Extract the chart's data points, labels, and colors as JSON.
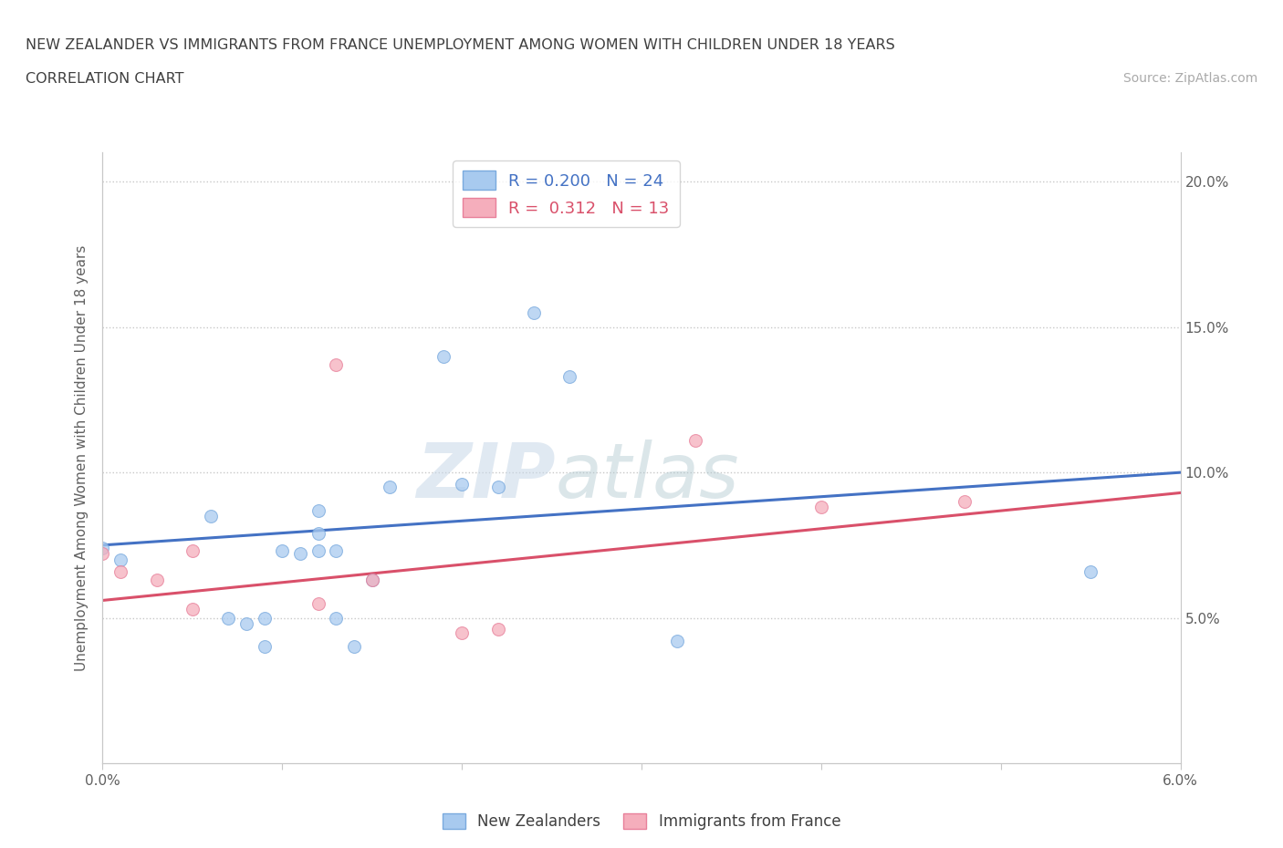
{
  "title_line1": "NEW ZEALANDER VS IMMIGRANTS FROM FRANCE UNEMPLOYMENT AMONG WOMEN WITH CHILDREN UNDER 18 YEARS",
  "title_line2": "CORRELATION CHART",
  "source_text": "Source: ZipAtlas.com",
  "ylabel": "Unemployment Among Women with Children Under 18 years",
  "xlim": [
    0.0,
    0.06
  ],
  "ylim": [
    0.0,
    0.21
  ],
  "nz_color": "#A8CAEF",
  "nz_color_edge": "#7AAADE",
  "fr_color": "#F5AEBC",
  "fr_color_edge": "#E8809A",
  "nz_scatter_x": [
    0.0,
    0.001,
    0.006,
    0.007,
    0.008,
    0.009,
    0.009,
    0.01,
    0.011,
    0.012,
    0.012,
    0.012,
    0.013,
    0.013,
    0.014,
    0.015,
    0.016,
    0.019,
    0.02,
    0.022,
    0.024,
    0.026,
    0.032,
    0.055
  ],
  "nz_scatter_y": [
    0.074,
    0.07,
    0.085,
    0.05,
    0.048,
    0.05,
    0.04,
    0.073,
    0.072,
    0.079,
    0.073,
    0.087,
    0.05,
    0.073,
    0.04,
    0.063,
    0.095,
    0.14,
    0.096,
    0.095,
    0.155,
    0.133,
    0.042,
    0.066
  ],
  "fr_scatter_x": [
    0.0,
    0.001,
    0.003,
    0.005,
    0.005,
    0.012,
    0.013,
    0.015,
    0.02,
    0.022,
    0.033,
    0.04,
    0.048
  ],
  "fr_scatter_y": [
    0.072,
    0.066,
    0.063,
    0.073,
    0.053,
    0.055,
    0.137,
    0.063,
    0.045,
    0.046,
    0.111,
    0.088,
    0.09
  ],
  "nz_R": 0.2,
  "nz_N": 24,
  "fr_R": 0.312,
  "fr_N": 13,
  "nz_trend_x": [
    0.0,
    0.06
  ],
  "nz_trend_y": [
    0.075,
    0.1
  ],
  "fr_trend_x": [
    0.0,
    0.06
  ],
  "fr_trend_y": [
    0.056,
    0.093
  ],
  "nz_trend_color": "#4472C4",
  "fr_trend_color": "#D9506A",
  "watermark_zip": "ZIP",
  "watermark_atlas": "atlas",
  "background_color": "#FFFFFF",
  "grid_color": "#C8C8C8",
  "title_color": "#404040",
  "tick_color": "#606060",
  "marker_size": 100,
  "marker_alpha": 0.75
}
